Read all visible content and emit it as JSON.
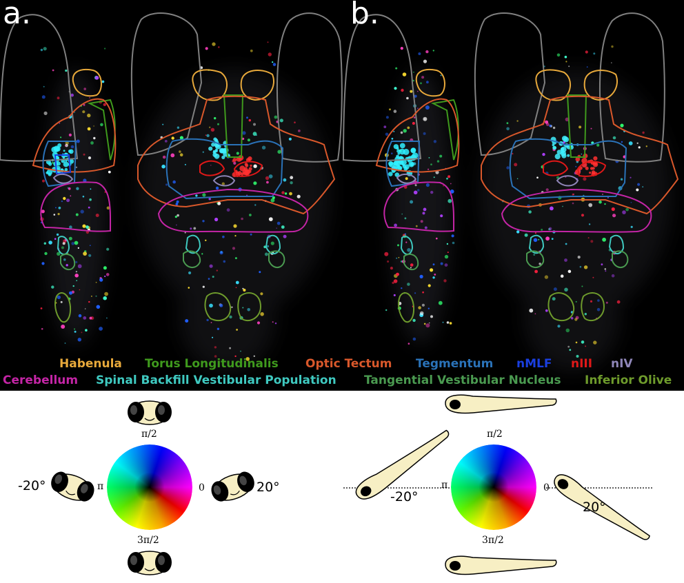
{
  "panels": {
    "a": {
      "label": "a."
    },
    "b": {
      "label": "b."
    }
  },
  "legend": {
    "row1": [
      {
        "label": "Habenula",
        "color": "#e8a93b"
      },
      {
        "label": "Torus Longitudinalis",
        "color": "#3f9a1d"
      },
      {
        "label": "Optic Tectum",
        "color": "#d9582b"
      },
      {
        "label": "Tegmentum",
        "color": "#2a72b8"
      },
      {
        "label": "nMLF",
        "color": "#1a3fe0"
      },
      {
        "label": "nIII",
        "color": "#e01818"
      },
      {
        "label": "nIV",
        "color": "#8f86b8"
      }
    ],
    "row2": [
      {
        "label": "Cerebellum",
        "color": "#c425a6"
      },
      {
        "label": "Spinal Backfill Vestibular Population",
        "color": "#3fc9c0"
      },
      {
        "label": "Tangential Vestibular Nucleus",
        "color": "#4a9a50"
      },
      {
        "label": "Inferior Olive",
        "color": "#6e9b2c"
      }
    ]
  },
  "roll_key": {
    "top": "π/2",
    "left": "π",
    "right": "0",
    "bottom": "3π/2",
    "left_angle": "-20°",
    "right_angle": "20°"
  },
  "pitch_key": {
    "top": "π/2",
    "left": "π",
    "right": "0",
    "bottom": "3π/2",
    "left_angle": "-20°",
    "right_angle": "20°"
  },
  "colors": {
    "background": "#000000",
    "fish_fill": "#f7efc4",
    "outline_gray": "#8a8a8a"
  }
}
